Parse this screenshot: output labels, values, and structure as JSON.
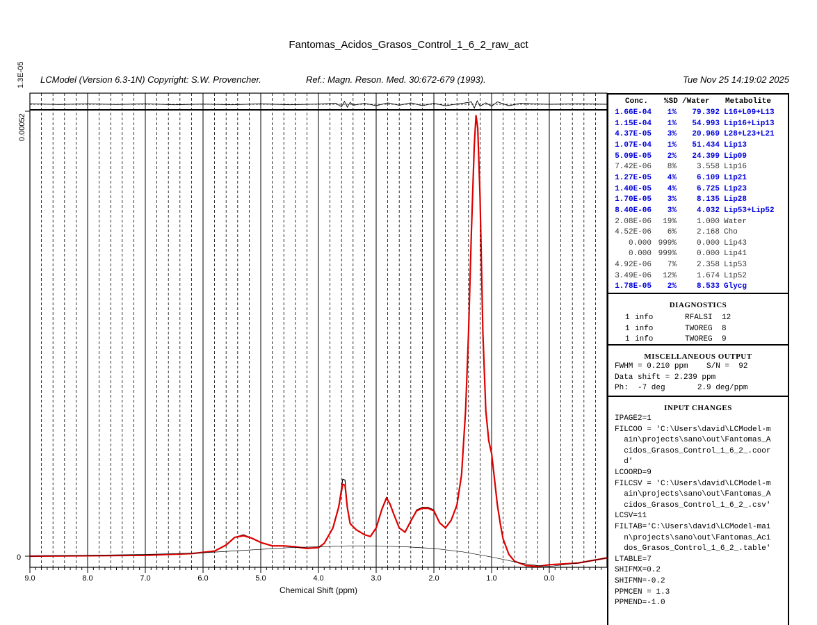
{
  "header": {
    "title": "Fantomas_Acidos_Grasos_Control_1_6_2_raw_act",
    "program": "LCModel (Version 6.3-1N) Copyright: S.W. Provencher.",
    "reference": "Ref.: Magn. Reson. Med. 30:672-679 (1993).",
    "date": "Tue Nov 25 14:19:02 2025"
  },
  "chart_data": {
    "type": "line",
    "title": "Fantomas_Acidos_Grasos_Control_1_6_2_raw_act",
    "xlabel": "Chemical Shift (ppm)",
    "ylabel": "",
    "x_reversed": true,
    "xlim": [
      9.0,
      -1.0
    ],
    "ylim": [
      -3e-05,
      0.00052
    ],
    "y_top_label": "0.00052",
    "y_zero_label": "0",
    "residual_scale_label": "1.3E-05",
    "x_ticks": [
      "9.0",
      "8.0",
      "7.0",
      "6.0",
      "5.0",
      "4.0",
      "3.0",
      "2.0",
      "1.0",
      "0.0"
    ],
    "x_tick_values": [
      9,
      8,
      7,
      6,
      5,
      4,
      3,
      2,
      1,
      0
    ],
    "series": [
      {
        "role": "data",
        "color": "#000000",
        "x": [
          9.0,
          8.0,
          7.0,
          6.2,
          5.8,
          5.6,
          5.45,
          5.3,
          5.15,
          5.0,
          4.8,
          4.6,
          4.4,
          4.2,
          4.0,
          3.9,
          3.75,
          3.65,
          3.58,
          3.54,
          3.5,
          3.45,
          3.35,
          3.2,
          3.1,
          3.0,
          2.9,
          2.82,
          2.76,
          2.7,
          2.6,
          2.5,
          2.4,
          2.3,
          2.2,
          2.1,
          2.0,
          1.9,
          1.8,
          1.7,
          1.6,
          1.52,
          1.45,
          1.4,
          1.35,
          1.3,
          1.27,
          1.24,
          1.2,
          1.15,
          1.1,
          1.05,
          1.0,
          0.95,
          0.9,
          0.85,
          0.8,
          0.7,
          0.6,
          0.4,
          0.2,
          0.0,
          -0.5,
          -1.0
        ],
        "y": [
          0.0,
          5e-07,
          1e-06,
          3e-06,
          6e-06,
          1.3e-05,
          2.2e-05,
          2.5e-05,
          2.1e-05,
          1.6e-05,
          1.2e-05,
          1.2e-05,
          1.1e-05,
          9e-06,
          1e-05,
          1.5e-05,
          3.3e-05,
          5.8e-05,
          9e-05,
          8.9e-05,
          5.8e-05,
          3.8e-05,
          3.1e-05,
          2.5e-05,
          2.3e-05,
          3.3e-05,
          5.5e-05,
          6.9e-05,
          6.1e-05,
          5e-05,
          3.3e-05,
          2.8e-05,
          4.1e-05,
          5.4e-05,
          5.7e-05,
          5.7e-05,
          5.4e-05,
          3.9e-05,
          3.3e-05,
          4.2e-05,
          6e-05,
          9.5e-05,
          0.00017,
          0.00026,
          0.00038,
          0.00048,
          0.000515,
          0.0005,
          0.00042,
          0.00026,
          0.00017,
          0.000135,
          0.00012,
          9e-05,
          6e-05,
          3.8e-05,
          2e-05,
          2e-06,
          -6e-06,
          -1.1e-05,
          -1.2e-05,
          -1e-05,
          -8e-06,
          -2e-06
        ]
      },
      {
        "role": "fit",
        "color": "#dd0000",
        "x": [
          9.0,
          8.0,
          7.0,
          6.2,
          5.8,
          5.6,
          5.45,
          5.3,
          5.15,
          5.0,
          4.8,
          4.6,
          4.4,
          4.2,
          4.0,
          3.9,
          3.75,
          3.65,
          3.58,
          3.54,
          3.5,
          3.45,
          3.35,
          3.2,
          3.1,
          3.0,
          2.9,
          2.82,
          2.76,
          2.7,
          2.6,
          2.5,
          2.4,
          2.3,
          2.2,
          2.1,
          2.0,
          1.9,
          1.8,
          1.7,
          1.6,
          1.52,
          1.45,
          1.4,
          1.35,
          1.3,
          1.27,
          1.24,
          1.2,
          1.15,
          1.1,
          1.05,
          1.0,
          0.95,
          0.9,
          0.85,
          0.8,
          0.7,
          0.6,
          0.4,
          0.2,
          0.0,
          -0.5,
          -1.0
        ],
        "y": [
          0.0,
          5e-07,
          1e-06,
          3e-06,
          6e-06,
          1.3e-05,
          2.2e-05,
          2.4e-05,
          2.1e-05,
          1.6e-05,
          1.2e-05,
          1.2e-05,
          1.1e-05,
          9e-06,
          1e-05,
          1.5e-05,
          3.3e-05,
          5.7e-05,
          8.4e-05,
          8.3e-05,
          5.7e-05,
          3.8e-05,
          3.1e-05,
          2.5e-05,
          2.3e-05,
          3.3e-05,
          5.5e-05,
          6.8e-05,
          6.1e-05,
          5e-05,
          3.3e-05,
          2.8e-05,
          4.1e-05,
          5.3e-05,
          5.6e-05,
          5.6e-05,
          5.3e-05,
          3.9e-05,
          3.3e-05,
          4.2e-05,
          6e-05,
          9.5e-05,
          0.00017,
          0.00026,
          0.00038,
          0.00048,
          0.000515,
          0.0005,
          0.00042,
          0.00026,
          0.00017,
          0.000135,
          0.00012,
          9e-05,
          6e-05,
          3.8e-05,
          2e-05,
          2e-06,
          -6e-06,
          -1.1e-05,
          -1.2e-05,
          -1e-05,
          -8e-06,
          -2e-06
        ]
      },
      {
        "role": "baseline",
        "color": "#000000",
        "x": [
          9.0,
          8.0,
          7.0,
          6.0,
          5.5,
          5.0,
          4.5,
          4.0,
          3.5,
          3.0,
          2.5,
          2.0,
          1.5,
          1.0,
          0.5,
          0.2,
          0.0,
          -0.5,
          -1.0
        ],
        "y": [
          0.0,
          1e-06,
          2e-06,
          4e-06,
          6e-06,
          8e-06,
          1e-05,
          1.1e-05,
          1.2e-05,
          1.2e-05,
          1.1e-05,
          9e-06,
          5e-06,
          -1e-06,
          -8e-06,
          -1.1e-05,
          -1.2e-05,
          -8e-06,
          -2e-06
        ]
      }
    ],
    "residual": {
      "x": [
        9.0,
        8.5,
        8.0,
        7.5,
        7.0,
        6.5,
        6.0,
        5.5,
        5.0,
        4.5,
        4.0,
        3.7,
        3.6,
        3.55,
        3.5,
        3.45,
        3.4,
        3.2,
        3.0,
        2.8,
        2.6,
        2.4,
        2.2,
        2.0,
        1.8,
        1.5,
        1.35,
        1.3,
        1.25,
        1.2,
        1.1,
        1.0,
        0.9,
        0.7,
        0.5,
        0.3,
        0.0,
        -0.5,
        -1.0
      ],
      "y": [
        0.1,
        -0.05,
        0.1,
        -0.05,
        0.1,
        -0.1,
        0.05,
        -0.1,
        0.1,
        -0.1,
        0.05,
        0.2,
        -0.5,
        0.6,
        -0.6,
        0.4,
        -0.2,
        0.2,
        -0.3,
        0.3,
        -0.2,
        0.3,
        -0.3,
        0.2,
        -0.3,
        0.2,
        0.5,
        -0.8,
        0.7,
        -0.4,
        0.3,
        -0.4,
        0.5,
        -0.3,
        0.2,
        0.1,
        0.0,
        0.1,
        0.0
      ]
    }
  },
  "concentrations": {
    "headers": [
      "Conc.",
      "%SD",
      "/Water",
      "Metabolite"
    ],
    "rows": [
      {
        "conc": "1.66E-04",
        "sd": "1%",
        "water": "79.392",
        "metab": "L16+L09+L13",
        "highlight": true
      },
      {
        "conc": "1.15E-04",
        "sd": "1%",
        "water": "54.993",
        "metab": "Lip16+Lip13",
        "highlight": true
      },
      {
        "conc": "4.37E-05",
        "sd": "3%",
        "water": "20.969",
        "metab": "L28+L23+L21",
        "highlight": true
      },
      {
        "conc": "1.07E-04",
        "sd": "1%",
        "water": "51.434",
        "metab": "Lip13",
        "highlight": true
      },
      {
        "conc": "5.09E-05",
        "sd": "2%",
        "water": "24.399",
        "metab": "Lip09",
        "highlight": true
      },
      {
        "conc": "7.42E-06",
        "sd": "8%",
        "water": "3.558",
        "metab": "Lip16",
        "highlight": false
      },
      {
        "conc": "1.27E-05",
        "sd": "4%",
        "water": "6.109",
        "metab": "Lip21",
        "highlight": true
      },
      {
        "conc": "1.40E-05",
        "sd": "4%",
        "water": "6.725",
        "metab": "Lip23",
        "highlight": true
      },
      {
        "conc": "1.70E-05",
        "sd": "3%",
        "water": "8.135",
        "metab": "Lip28",
        "highlight": true
      },
      {
        "conc": "8.40E-06",
        "sd": "3%",
        "water": "4.032",
        "metab": "Lip53+Lip52",
        "highlight": true
      },
      {
        "conc": "2.08E-06",
        "sd": "19%",
        "water": "1.000",
        "metab": "Water",
        "highlight": false
      },
      {
        "conc": "4.52E-06",
        "sd": "6%",
        "water": "2.168",
        "metab": "Cho",
        "highlight": false
      },
      {
        "conc": "0.000",
        "sd": "999%",
        "water": "0.000",
        "metab": "Lip43",
        "highlight": false
      },
      {
        "conc": "0.000",
        "sd": "999%",
        "water": "0.000",
        "metab": "Lip41",
        "highlight": false
      },
      {
        "conc": "4.92E-06",
        "sd": "7%",
        "water": "2.358",
        "metab": "Lip53",
        "highlight": false
      },
      {
        "conc": "3.49E-06",
        "sd": "12%",
        "water": "1.674",
        "metab": "Lip52",
        "highlight": false
      },
      {
        "conc": "1.78E-05",
        "sd": "2%",
        "water": "8.533",
        "metab": "Glycg",
        "highlight": true
      }
    ]
  },
  "diagnostics": {
    "title": "DIAGNOSTICS",
    "rows": [
      {
        "count": "1",
        "type": "info",
        "code": "RFALSI",
        "num": "12"
      },
      {
        "count": "1",
        "type": "info",
        "code": "TWOREG",
        "num": "8"
      },
      {
        "count": "1",
        "type": "info",
        "code": "TWOREG",
        "num": "9"
      }
    ]
  },
  "misc": {
    "title": "MISCELLANEOUS OUTPUT",
    "lines": [
      "FWHM = 0.210 ppm    S/N =  92",
      "Data shift = 2.239 ppm",
      "Ph:  -7 deg       2.9 deg/ppm"
    ]
  },
  "input_changes": {
    "title": "INPUT CHANGES",
    "lines": [
      "IPAGE2=1",
      "FILCOO = 'C:\\Users\\david\\LCModel-m",
      "  ain\\projects\\sano\\out\\Fantomas_A",
      "  cidos_Grasos_Control_1_6_2_.coor",
      "  d'",
      "LCOORD=9",
      "FILCSV = 'C:\\Users\\david\\LCModel-m",
      "  ain\\projects\\sano\\out\\Fantomas_A",
      "  cidos_Grasos_Control_1_6_2_.csv'",
      "LCSV=11",
      "FILTAB='C:\\Users\\david\\LCModel-mai",
      "  n\\projects\\sano\\out\\Fantomas_Aci",
      "  dos_Grasos_Control_1_6_2_.table'",
      "LTABLE=7",
      "SHIFMX=0.2",
      "SHIFMN=-0.2",
      "PPMCEN = 1.3",
      "PPMEND=-1.0"
    ]
  }
}
